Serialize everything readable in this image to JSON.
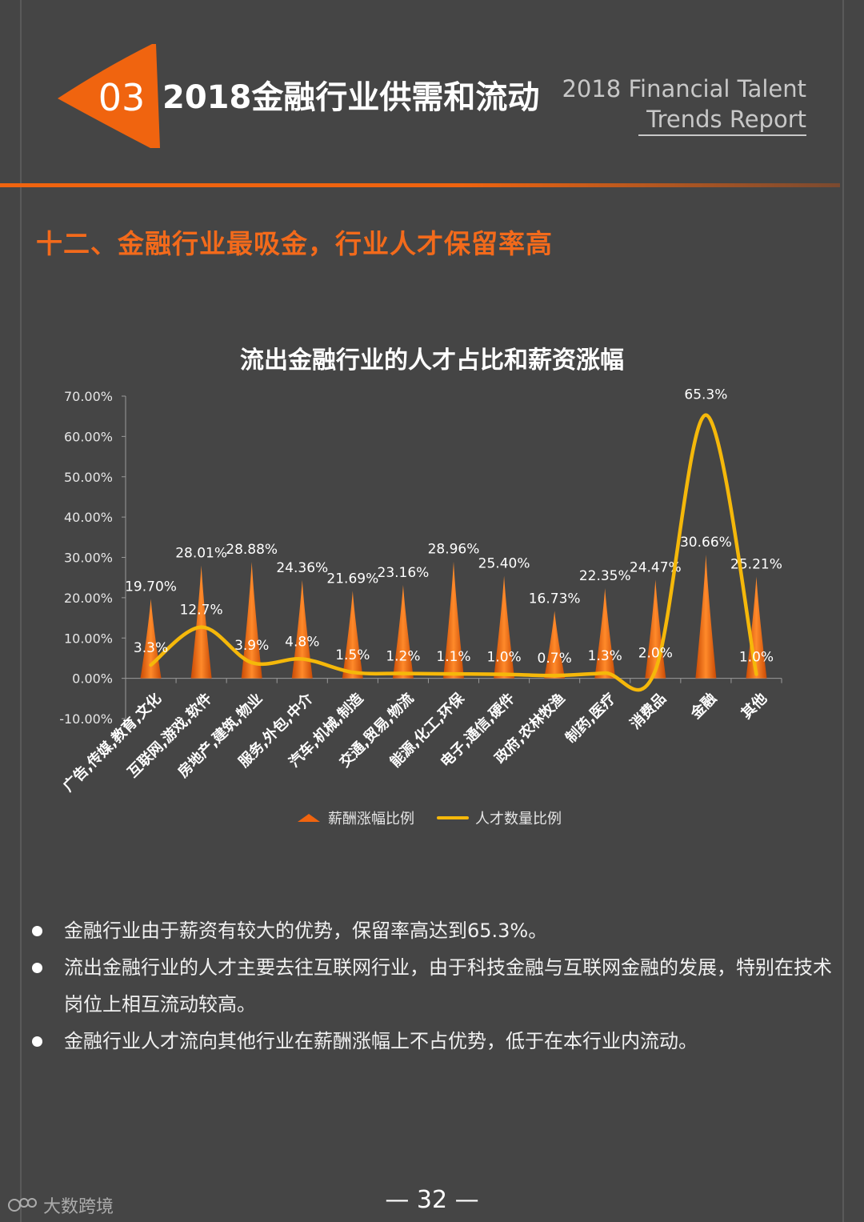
{
  "header": {
    "section_number": "03",
    "section_title": "2018金融行业供需和流动",
    "en_title_line1": "2018 Financial Talent",
    "en_title_line2": "Trends Report"
  },
  "subheading": "十二、金融行业最吸金，行业人才保留率高",
  "colors": {
    "background": "#454545",
    "accent_orange": "#f0640f",
    "line_yellow": "#f5b80a"
  },
  "chart_data": {
    "type": "bar",
    "title": "流出金融行业的人才占比和薪资涨幅",
    "categories": [
      "广告,传媒,教育,文化",
      "互联网,游戏,软件",
      "房地产,建筑,物业",
      "服务,外包,中介",
      "汽车,机械,制造",
      "交通,贸易,物流",
      "能源,化工,环保",
      "电子,通信,硬件",
      "政府,农林牧渔",
      "制药,医疗",
      "消费品",
      "金融",
      "其他"
    ],
    "series": [
      {
        "name": "薪酬涨幅比例",
        "type": "bar",
        "values": [
          19.7,
          28.01,
          28.88,
          24.36,
          21.69,
          23.16,
          28.96,
          25.4,
          16.73,
          22.35,
          24.47,
          30.66,
          25.21
        ],
        "labels": [
          "19.70%",
          "28.01%",
          "28.88%",
          "24.36%",
          "21.69%",
          "23.16%",
          "28.96%",
          "25.40%",
          "16.73%",
          "22.35%",
          "24.47%",
          "30.66%",
          "25.21%"
        ]
      },
      {
        "name": "人才数量比例",
        "type": "line",
        "values": [
          3.3,
          12.7,
          3.9,
          4.8,
          1.5,
          1.2,
          1.1,
          1.0,
          0.7,
          1.3,
          2.0,
          65.3,
          1.0
        ],
        "labels": [
          "3.3%",
          "12.7%",
          "3.9%",
          "4.8%",
          "1.5%",
          "1.2%",
          "1.1%",
          "1.0%",
          "0.7%",
          "1.3%",
          "2.0%",
          "65.3%",
          "1.0%"
        ]
      }
    ],
    "y_ticks": [
      "70.00%",
      "60.00%",
      "50.00%",
      "40.00%",
      "30.00%",
      "20.00%",
      "10.00%",
      "0.00%",
      "-10.00%"
    ],
    "ylim": [
      -10,
      70
    ],
    "grid": false,
    "legend_position": "bottom"
  },
  "bullets": [
    "金融行业由于薪资有较大的优势，保留率高达到65.3%。",
    "流出金融行业的人才主要去往互联网行业，由于科技金融与互联网金融的发展，特别在技术岗位上相互流动较高。",
    "金融行业人才流向其他行业在薪酬涨幅上不占优势，低于在本行业内流动。"
  ],
  "page_number": "— 32 —",
  "watermark": "大数跨境"
}
